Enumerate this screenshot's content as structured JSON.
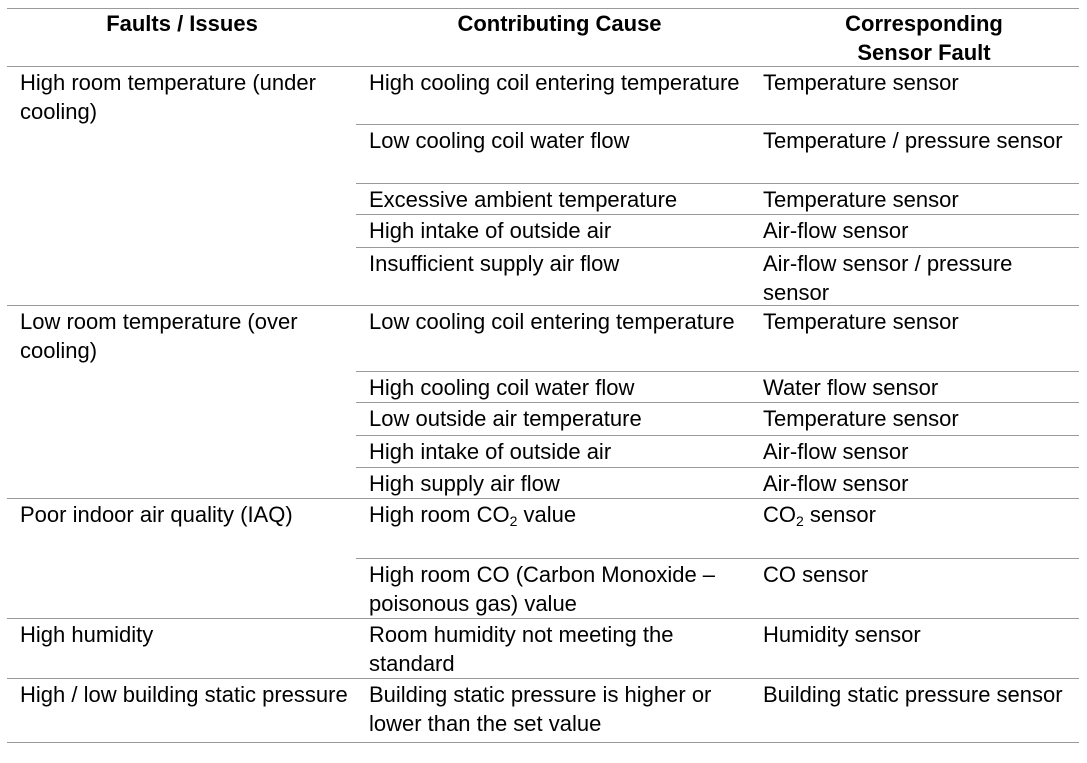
{
  "headers": {
    "faults": "Faults / Issues",
    "cause": "Contributing Cause",
    "sensor_line1": "Corresponding",
    "sensor_line2": "Sensor Fault"
  },
  "groups": [
    {
      "fault": "High room temperature (under cooling)",
      "rows": [
        {
          "cause": "High cooling coil entering temperature",
          "sensor": "Temperature sensor"
        },
        {
          "cause": "Low cooling coil water flow",
          "sensor": "Temperature / pressure sensor"
        },
        {
          "cause": "Excessive ambient temperature",
          "sensor": "Temperature sensor"
        },
        {
          "cause": "High intake of outside air",
          "sensor": "Air-flow sensor"
        },
        {
          "cause": "Insufficient supply air flow",
          "sensor": "Air-flow sensor / pressure sensor"
        }
      ]
    },
    {
      "fault": "Low  room temperature (over  cooling)",
      "rows": [
        {
          "cause": "Low cooling coil entering temperature",
          "sensor": "Temperature sensor"
        },
        {
          "cause": "High cooling coil water flow",
          "sensor": "Water flow sensor"
        },
        {
          "cause": "Low outside air temperature",
          "sensor": "Temperature sensor"
        },
        {
          "cause": "High intake of outside air",
          "sensor": "Air-flow sensor"
        },
        {
          "cause": "High  supply air flow",
          "sensor": "Air-flow sensor"
        }
      ]
    },
    {
      "fault": "Poor indoor air quality (IAQ)",
      "rows": [
        {
          "cause_pre": "High room CO",
          "cause_sub": "2",
          "cause_post": " value",
          "sensor_pre": "CO",
          "sensor_sub": "2",
          "sensor_post": " sensor"
        },
        {
          "cause": "High room CO (Carbon Monoxide – poisonous gas) value",
          "sensor": "CO sensor"
        }
      ]
    },
    {
      "fault": "High humidity",
      "rows": [
        {
          "cause": "Room humidity not meeting the standard",
          "sensor": "Humidity sensor"
        }
      ]
    },
    {
      "fault": "High / low building static pressure",
      "rows": [
        {
          "cause": "Building static pressure is higher or lower  than the set value",
          "sensor": "Building static pressure sensor"
        }
      ]
    }
  ]
}
